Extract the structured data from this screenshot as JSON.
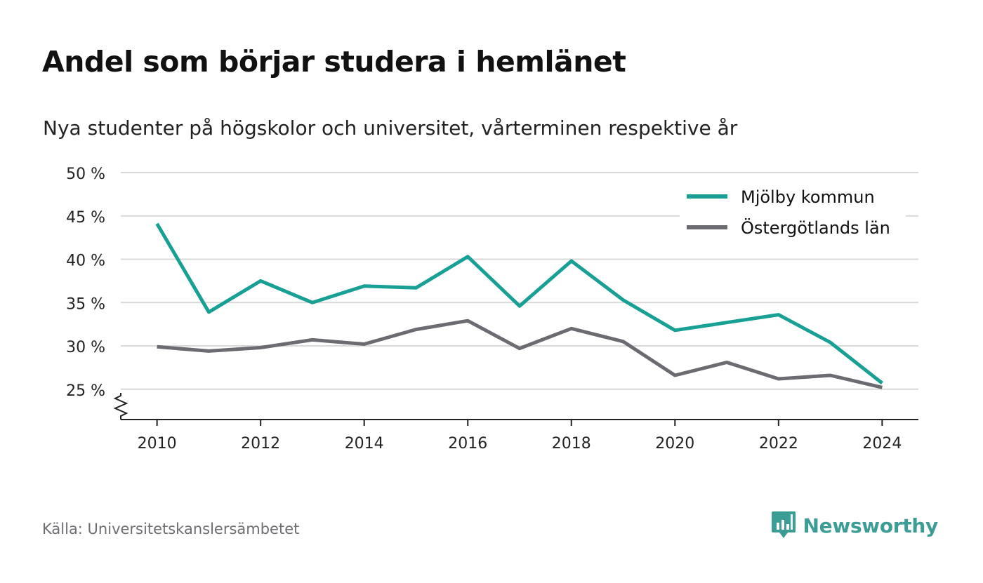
{
  "title": "Andel som börjar studera i hemlänet",
  "subtitle": "Nya studenter på högskolor och universitet, vårterminen respektive år",
  "source": "Källa: Universitetskanslersämbetet",
  "brand": {
    "name": "Newsworthy",
    "icon": "newsworthy-logo-icon",
    "color": "#3c9c96"
  },
  "chart_data": {
    "type": "line",
    "title": "Andel som börjar studera i hemlänet",
    "subtitle": "Nya studenter på högskolor och universitet, vårterminen respektive år",
    "x": [
      2010,
      2011,
      2012,
      2013,
      2014,
      2015,
      2016,
      2017,
      2018,
      2019,
      2020,
      2021,
      2022,
      2023,
      2024
    ],
    "xticks": [
      2010,
      2012,
      2014,
      2016,
      2018,
      2020,
      2022,
      2024
    ],
    "xtick_labels": [
      "2010",
      "2012",
      "2014",
      "2016",
      "2018",
      "2020",
      "2022",
      "2024"
    ],
    "yticks": [
      25,
      30,
      35,
      40,
      45,
      50
    ],
    "ytick_labels": [
      "25 %",
      "30 %",
      "35 %",
      "40 %",
      "45 %",
      "50 %"
    ],
    "ylim": [
      21.5,
      50
    ],
    "xlim": [
      2009.3,
      2024.7
    ],
    "y_axis_broken": true,
    "grid": true,
    "legend_position": "top-right",
    "series": [
      {
        "name": "Mjölby kommun",
        "color": "#17a093",
        "values": [
          44.1,
          33.9,
          37.5,
          35.0,
          36.9,
          36.7,
          40.3,
          34.6,
          39.8,
          35.3,
          31.8,
          32.7,
          33.6,
          30.4,
          25.7
        ]
      },
      {
        "name": "Östergötlands län",
        "color": "#6c6b72",
        "values": [
          29.9,
          29.4,
          29.8,
          30.7,
          30.2,
          31.9,
          32.9,
          29.7,
          32.0,
          30.5,
          26.6,
          28.1,
          26.2,
          26.6,
          25.2
        ]
      }
    ]
  }
}
